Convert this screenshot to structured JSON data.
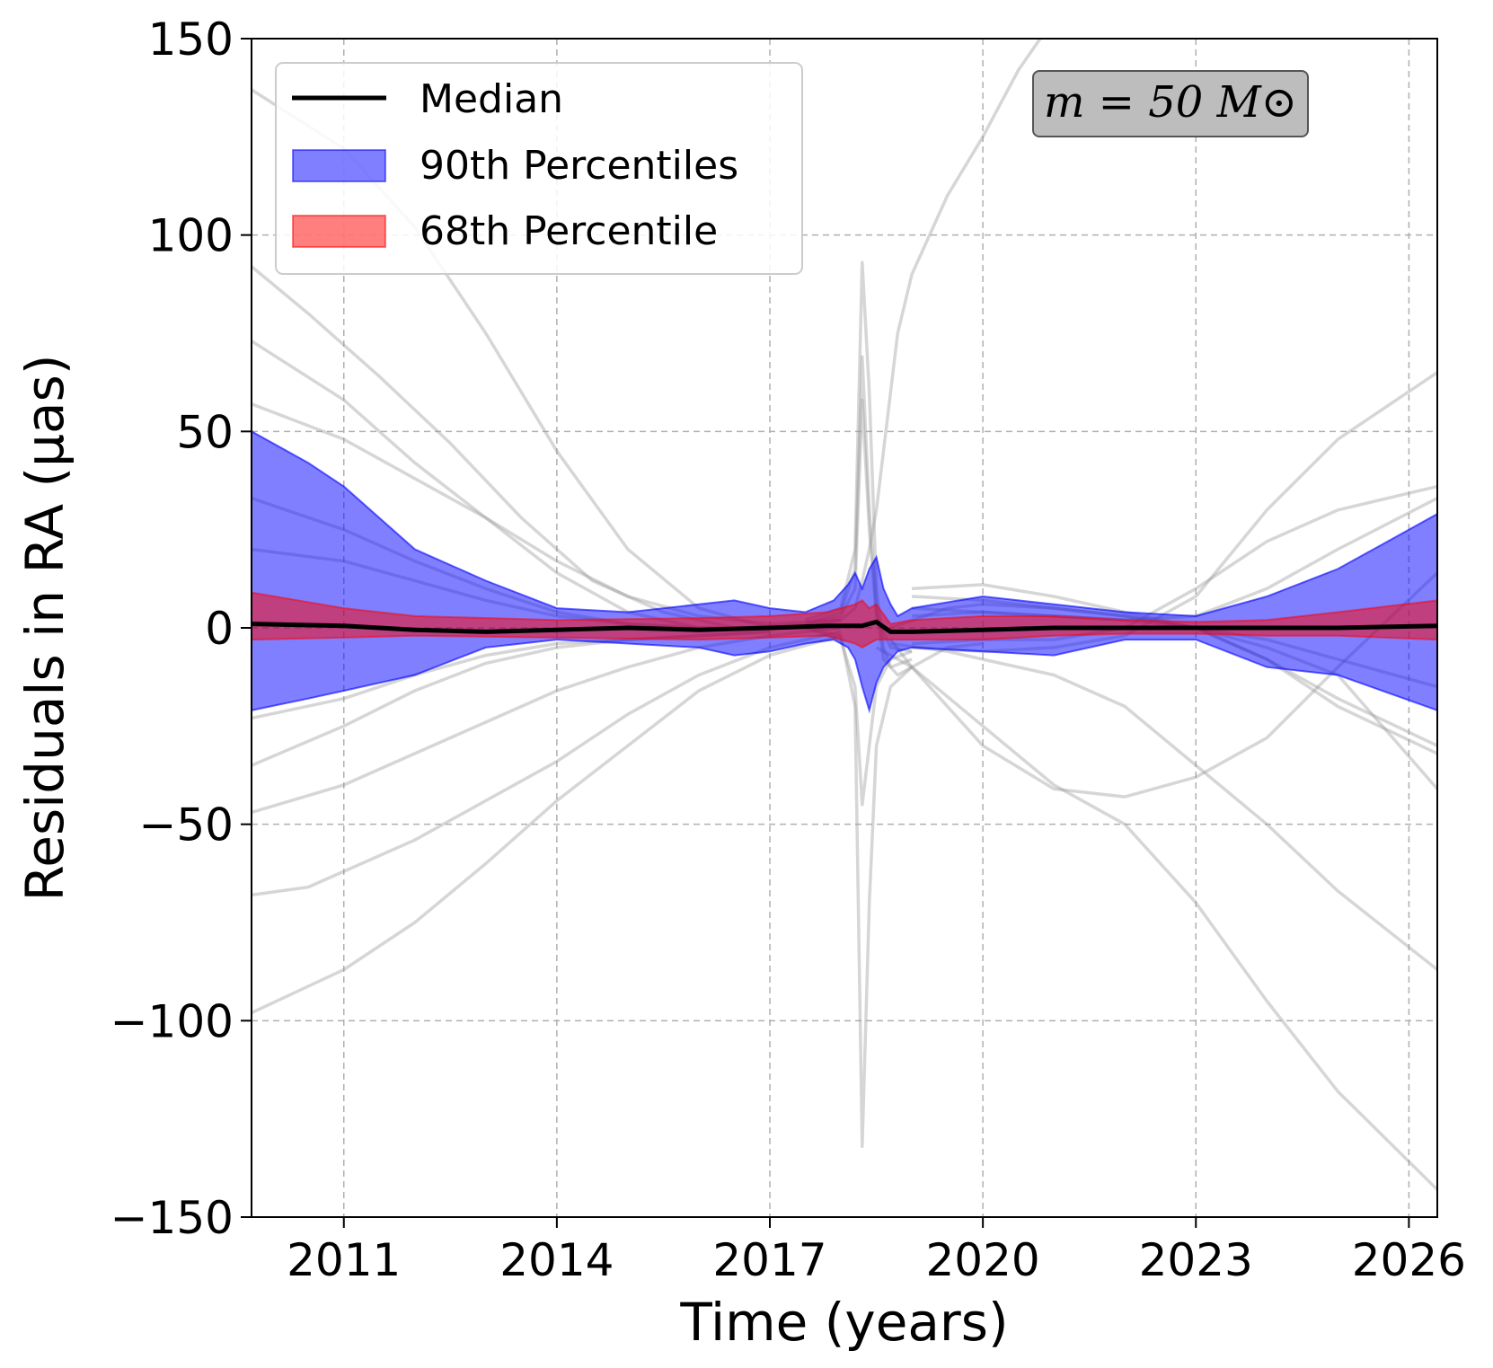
{
  "chart_data": {
    "type": "line",
    "title": "",
    "xlabel": "Time (years)",
    "ylabel": "Residuals in RA (μas)",
    "xlim": [
      2009.7,
      2026.4
    ],
    "ylim": [
      -150,
      150
    ],
    "xticks": [
      2011,
      2014,
      2017,
      2020,
      2023,
      2026
    ],
    "xtick_labels": [
      "2011",
      "2014",
      "2017",
      "2020",
      "2023",
      "2026"
    ],
    "yticks": [
      -150,
      -100,
      -50,
      0,
      50,
      100,
      150
    ],
    "ytick_labels": [
      "−150",
      "−100",
      "−50",
      "0",
      "50",
      "100",
      "150"
    ],
    "grid": true,
    "legend": {
      "position": "top-left",
      "entries": [
        {
          "label": "Median",
          "kind": "line",
          "color": "#000000"
        },
        {
          "label": "90th Percentiles",
          "kind": "band",
          "color": "#0000ff"
        },
        {
          "label": "68th Percentile",
          "kind": "band",
          "color": "#ff0000"
        }
      ]
    },
    "annotation": {
      "text": "m = 50 M⊙",
      "position": "top-right"
    },
    "colors": {
      "median": "#000000",
      "p90": "#0000ff",
      "p68": "#ff0000",
      "samples": "#999999"
    },
    "median": {
      "x": [
        2009.7,
        2011,
        2012,
        2013,
        2014,
        2015,
        2016,
        2017,
        2017.8,
        2018.3,
        2018.5,
        2018.7,
        2019,
        2020,
        2021,
        2022,
        2023,
        2024,
        2025,
        2026.4
      ],
      "y": [
        1,
        0.5,
        -0.5,
        -1,
        -0.5,
        0,
        -0.5,
        0,
        0.5,
        0.5,
        1.5,
        -1,
        -1,
        -0.5,
        0,
        0,
        0,
        0,
        0,
        0.5
      ]
    },
    "p90": {
      "x": [
        2009.7,
        2010.5,
        2011,
        2012,
        2013,
        2014,
        2015,
        2016,
        2016.5,
        2017,
        2017.5,
        2017.9,
        2018.1,
        2018.2,
        2018.3,
        2018.4,
        2018.5,
        2018.6,
        2018.7,
        2018.8,
        2019,
        2020,
        2021,
        2022,
        2023,
        2024,
        2025,
        2026.4
      ],
      "upper": [
        50,
        42,
        36,
        20,
        12,
        5,
        4,
        6,
        7,
        5,
        4,
        7,
        11,
        14,
        10,
        15,
        18,
        10,
        6,
        3,
        5,
        8,
        6,
        4,
        3,
        8,
        15,
        29
      ],
      "lower": [
        -21,
        -18,
        -16,
        -12,
        -5,
        -3,
        -4,
        -5,
        -7,
        -6,
        -4,
        -3,
        -5,
        -8,
        -15,
        -21,
        -14,
        -10,
        -8,
        -6,
        -5,
        -6,
        -7,
        -3,
        -3,
        -10,
        -12,
        -21
      ]
    },
    "p68": {
      "x": [
        2009.7,
        2011,
        2012,
        2014,
        2016,
        2017,
        2017.8,
        2018.2,
        2018.3,
        2018.4,
        2018.5,
        2018.7,
        2019,
        2020,
        2021,
        2022,
        2023,
        2024,
        2025,
        2026.4
      ],
      "upper": [
        9,
        5,
        3,
        2,
        2.5,
        3,
        4,
        6,
        7,
        5,
        6,
        1,
        2,
        3,
        3,
        2,
        1.5,
        2,
        4,
        7
      ],
      "lower": [
        -3,
        -2.5,
        -2,
        -2.5,
        -3,
        -2.5,
        -2,
        -4,
        -5,
        -4,
        -3,
        -3,
        -3,
        -3,
        -2,
        -1.5,
        -1.5,
        -2,
        -2,
        -3
      ]
    },
    "samples": [
      {
        "x": [
          2009.7,
          2011,
          2012,
          2013,
          2014,
          2015,
          2016,
          2017,
          2018
        ],
        "y": [
          137,
          122,
          102,
          75,
          45,
          20,
          5,
          0,
          0
        ]
      },
      {
        "x": [
          2009.7,
          2010.5,
          2011.5,
          2012.5,
          2013.5,
          2014.5,
          2015.5,
          2016.5,
          2017.5,
          2018
        ],
        "y": [
          92,
          80,
          64,
          47,
          28,
          12,
          4,
          0,
          1,
          2
        ]
      },
      {
        "x": [
          2009.7,
          2011,
          2012,
          2013,
          2014,
          2015,
          2016,
          2017
        ],
        "y": [
          73,
          58,
          42,
          28,
          14,
          4,
          0,
          0
        ]
      },
      {
        "x": [
          2009.7,
          2011,
          2012,
          2013,
          2014,
          2015,
          2016,
          2017,
          2018
        ],
        "y": [
          57,
          48,
          38,
          28,
          17,
          8,
          3,
          1,
          2
        ]
      },
      {
        "x": [
          2009.7,
          2011,
          2012,
          2013,
          2014,
          2015,
          2016,
          2017
        ],
        "y": [
          33,
          25,
          17,
          10,
          4,
          1,
          0,
          0
        ]
      },
      {
        "x": [
          2009.7,
          2011,
          2012,
          2013,
          2014,
          2015,
          2016,
          2017
        ],
        "y": [
          20,
          17,
          12,
          7,
          3,
          1,
          0,
          0
        ]
      },
      {
        "x": [
          2009.7,
          2011,
          2012,
          2013,
          2014,
          2015,
          2016,
          2017,
          2018
        ],
        "y": [
          -98,
          -87,
          -75,
          -60,
          -44,
          -30,
          -16,
          -7,
          -2
        ]
      },
      {
        "x": [
          2009.7,
          2010.5,
          2011,
          2012,
          2013,
          2014,
          2015,
          2016,
          2017,
          2018
        ],
        "y": [
          -68,
          -66,
          -62,
          -54,
          -44,
          -34,
          -22,
          -12,
          -5,
          -1
        ]
      },
      {
        "x": [
          2009.7,
          2011,
          2012,
          2013,
          2014,
          2015,
          2016,
          2017,
          2018
        ],
        "y": [
          -47,
          -40,
          -32,
          -24,
          -16,
          -10,
          -5,
          -2,
          0
        ]
      },
      {
        "x": [
          2009.7,
          2011,
          2012,
          2013,
          2014,
          2015,
          2016,
          2017
        ],
        "y": [
          -35,
          -25,
          -16,
          -9,
          -5,
          -3,
          -2,
          -1
        ]
      },
      {
        "x": [
          2009.7,
          2011,
          2012,
          2013,
          2014,
          2015,
          2016,
          2017
        ],
        "y": [
          -23,
          -18,
          -12,
          -7,
          -4,
          -3,
          -2,
          -1
        ]
      },
      {
        "x": [
          2017.5,
          2018,
          2018.2,
          2018.3,
          2018.4,
          2018.5,
          2018.6,
          2018.7,
          2019
        ],
        "y": [
          2,
          5,
          20,
          93,
          60,
          10,
          -5,
          -10,
          -8
        ]
      },
      {
        "x": [
          2017.5,
          2018,
          2018.2,
          2018.3,
          2018.4,
          2018.5,
          2018.6,
          2018.8,
          2019
        ],
        "y": [
          1,
          4,
          15,
          69,
          30,
          5,
          -8,
          -12,
          -10
        ]
      },
      {
        "x": [
          2017.5,
          2018,
          2018.2,
          2018.3,
          2018.4,
          2018.5,
          2018.7,
          2019
        ],
        "y": [
          1,
          3,
          10,
          58,
          25,
          3,
          -5,
          -6
        ]
      },
      {
        "x": [
          2017.5,
          2018,
          2018.2,
          2018.3,
          2018.4,
          2018.5,
          2018.7,
          2019,
          2019.5,
          2020
        ],
        "y": [
          0,
          -2,
          -20,
          -132,
          -70,
          -30,
          -15,
          -10,
          -5,
          -4
        ]
      },
      {
        "x": [
          2017.5,
          2018,
          2018.2,
          2018.3,
          2018.4,
          2018.5,
          2018.7,
          2019
        ],
        "y": [
          0,
          -3,
          -15,
          -45,
          -30,
          -15,
          -8,
          -6
        ]
      },
      {
        "x": [
          2017.5,
          2018,
          2018.2,
          2018.3,
          2018.4,
          2018.5,
          2018.6,
          2018.7,
          2018.8,
          2019,
          2019.5,
          2020,
          2020.5,
          2021
        ],
        "y": [
          0,
          2,
          5,
          12,
          20,
          30,
          45,
          60,
          75,
          90,
          110,
          125,
          142,
          155
        ]
      },
      {
        "x": [
          2018.5,
          2019,
          2020,
          2021,
          2022,
          2023,
          2024,
          2025,
          2026.4
        ],
        "y": [
          -5,
          -10,
          -25,
          -40,
          -50,
          -70,
          -95,
          -118,
          -143
        ]
      },
      {
        "x": [
          2018.7,
          2019,
          2020,
          2021,
          2022,
          2023,
          2024,
          2025,
          2026.4
        ],
        "y": [
          -3,
          -10,
          -30,
          -41,
          -43,
          -38,
          -28,
          -10,
          14
        ]
      },
      {
        "x": [
          2018.7,
          2019.5,
          2020,
          2021,
          2022,
          2023,
          2024,
          2025,
          2026.4
        ],
        "y": [
          -4,
          -6,
          -8,
          -12,
          -20,
          -35,
          -50,
          -67,
          -87
        ]
      },
      {
        "x": [
          2018.7,
          2019.5,
          2020,
          2021,
          2022,
          2023,
          2024,
          2025,
          2026.4
        ],
        "y": [
          0,
          5,
          6,
          5,
          3,
          0,
          -8,
          -20,
          -32
        ]
      },
      {
        "x": [
          2019,
          2020,
          2021,
          2022,
          2023,
          2024,
          2025,
          2026.4
        ],
        "y": [
          -5,
          -6,
          -5,
          -2,
          8,
          30,
          48,
          65
        ]
      },
      {
        "x": [
          2019,
          2020,
          2021,
          2022,
          2023,
          2024,
          2025,
          2026.4
        ],
        "y": [
          -4,
          -3,
          -3,
          0,
          10,
          22,
          30,
          36
        ]
      },
      {
        "x": [
          2019,
          2020,
          2021,
          2022,
          2023,
          2024,
          2025,
          2026.4
        ],
        "y": [
          5,
          4,
          3,
          2,
          3,
          10,
          20,
          33
        ]
      },
      {
        "x": [
          2019,
          2020,
          2021,
          2022,
          2023,
          2024,
          2025,
          2026.4
        ],
        "y": [
          10,
          11,
          8,
          4,
          0,
          -8,
          -18,
          -30
        ]
      },
      {
        "x": [
          2019,
          2020,
          2021,
          2022,
          2023,
          2024,
          2025,
          2026.4
        ],
        "y": [
          8,
          7,
          5,
          3,
          0,
          -5,
          -12,
          -41
        ]
      },
      {
        "x": [
          2019,
          2020,
          2021,
          2022,
          2023,
          2024,
          2025,
          2026.4
        ],
        "y": [
          3,
          4,
          3,
          2,
          0,
          -3,
          -8,
          -15
        ]
      }
    ]
  }
}
